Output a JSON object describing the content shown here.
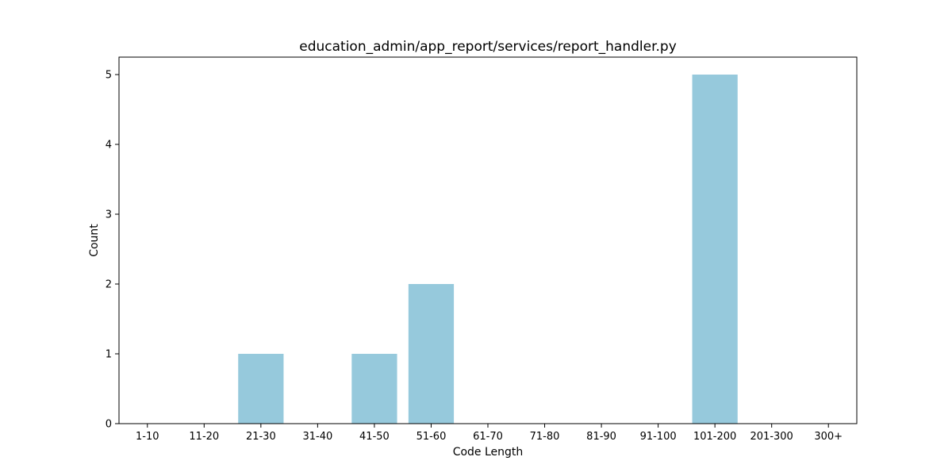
{
  "chart_data": {
    "type": "bar",
    "title": "education_admin/app_report/services/report_handler.py",
    "xlabel": "Code Length",
    "ylabel": "Count",
    "categories": [
      "1-10",
      "11-20",
      "21-30",
      "31-40",
      "41-50",
      "51-60",
      "61-70",
      "71-80",
      "81-90",
      "91-100",
      "101-200",
      "201-300",
      "300+"
    ],
    "values": [
      0,
      0,
      1,
      0,
      1,
      2,
      0,
      0,
      0,
      0,
      5,
      0,
      0
    ],
    "ylim": [
      0,
      5.25
    ],
    "yticks": [
      0,
      1,
      2,
      3,
      4,
      5
    ],
    "grid": false,
    "bar_color": "#96c9dc"
  }
}
